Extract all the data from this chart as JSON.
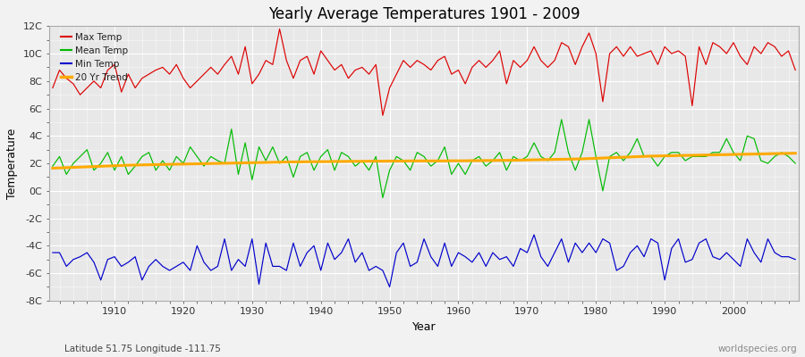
{
  "title": "Yearly Average Temperatures 1901 - 2009",
  "xlabel": "Year",
  "ylabel": "Temperature",
  "lat_lon_label": "Latitude 51.75 Longitude -111.75",
  "source_label": "worldspecies.org",
  "fig_facecolor": "#f0f0f0",
  "plot_facecolor": "#e8e8e8",
  "ylim": [
    -8,
    12
  ],
  "yticks": [
    -8,
    -6,
    -4,
    -2,
    0,
    2,
    4,
    6,
    8,
    10,
    12
  ],
  "ytick_labels": [
    "-8C",
    "-6C",
    "-4C",
    "-2C",
    "0C",
    "2C",
    "4C",
    "6C",
    "8C",
    "10C",
    "12C"
  ],
  "year_start": 1901,
  "year_end": 2009,
  "max_temp_color": "#dd0000",
  "mean_temp_color": "#00bb00",
  "min_temp_color": "#0000cc",
  "trend_color": "#ffaa00",
  "max_temp": [
    7.5,
    8.8,
    8.2,
    7.8,
    7.0,
    7.5,
    8.0,
    7.5,
    8.8,
    9.2,
    7.2,
    8.5,
    7.5,
    8.2,
    8.5,
    8.8,
    9.0,
    8.5,
    9.2,
    8.2,
    7.5,
    8.0,
    8.5,
    9.0,
    8.5,
    9.2,
    9.8,
    8.5,
    10.5,
    7.8,
    8.5,
    9.5,
    9.2,
    11.8,
    9.5,
    8.2,
    9.5,
    9.8,
    8.5,
    10.2,
    9.5,
    8.8,
    9.2,
    8.2,
    8.8,
    9.0,
    8.5,
    9.2,
    5.5,
    7.5,
    8.5,
    9.5,
    9.0,
    9.5,
    9.2,
    8.8,
    9.5,
    9.8,
    8.5,
    8.8,
    7.8,
    9.0,
    9.5,
    9.0,
    9.5,
    10.2,
    7.8,
    9.5,
    9.0,
    9.5,
    10.5,
    9.5,
    9.0,
    9.5,
    10.8,
    10.5,
    9.2,
    10.5,
    11.5,
    10.0,
    6.5,
    10.0,
    10.5,
    9.8,
    10.5,
    9.8,
    10.0,
    10.2,
    9.2,
    10.5,
    10.0,
    10.2,
    9.8,
    6.2,
    10.5,
    9.2,
    10.8,
    10.5,
    10.0,
    10.8,
    9.8,
    9.2,
    10.5,
    10.0,
    10.8,
    10.5,
    9.8,
    10.2,
    8.8
  ],
  "mean_temp": [
    1.8,
    2.5,
    1.2,
    2.0,
    2.5,
    3.0,
    1.5,
    2.0,
    2.8,
    1.5,
    2.5,
    1.2,
    1.8,
    2.5,
    2.8,
    1.5,
    2.2,
    1.5,
    2.5,
    2.0,
    3.2,
    2.5,
    1.8,
    2.5,
    2.2,
    2.0,
    4.5,
    1.2,
    3.5,
    0.8,
    3.2,
    2.2,
    3.2,
    2.0,
    2.5,
    1.0,
    2.5,
    2.8,
    1.5,
    2.5,
    3.0,
    1.5,
    2.8,
    2.5,
    1.8,
    2.2,
    1.5,
    2.5,
    -0.5,
    1.5,
    2.5,
    2.2,
    1.5,
    2.8,
    2.5,
    1.8,
    2.2,
    3.2,
    1.2,
    2.0,
    1.2,
    2.2,
    2.5,
    1.8,
    2.2,
    2.8,
    1.5,
    2.5,
    2.2,
    2.5,
    3.5,
    2.5,
    2.2,
    2.8,
    5.2,
    2.8,
    1.5,
    2.8,
    5.2,
    2.5,
    0.0,
    2.5,
    2.8,
    2.2,
    2.8,
    3.8,
    2.5,
    2.5,
    1.8,
    2.5,
    2.8,
    2.8,
    2.2,
    2.5,
    2.5,
    2.5,
    2.8,
    2.8,
    3.8,
    2.8,
    2.2,
    4.0,
    3.8,
    2.2,
    2.0,
    2.5,
    2.8,
    2.5,
    2.0
  ],
  "min_temp": [
    -4.5,
    -4.5,
    -5.5,
    -5.0,
    -4.8,
    -4.5,
    -5.2,
    -6.5,
    -5.0,
    -4.8,
    -5.5,
    -5.2,
    -4.8,
    -6.5,
    -5.5,
    -5.0,
    -5.5,
    -5.8,
    -5.5,
    -5.2,
    -5.8,
    -4.0,
    -5.2,
    -5.8,
    -5.5,
    -3.5,
    -5.8,
    -5.0,
    -5.5,
    -3.5,
    -6.8,
    -3.8,
    -5.5,
    -5.5,
    -5.8,
    -3.8,
    -5.5,
    -4.5,
    -4.0,
    -5.8,
    -3.8,
    -5.0,
    -4.5,
    -3.5,
    -5.2,
    -4.5,
    -5.8,
    -5.5,
    -5.8,
    -7.0,
    -4.5,
    -3.8,
    -5.5,
    -5.2,
    -3.5,
    -4.8,
    -5.5,
    -3.8,
    -5.5,
    -4.5,
    -4.8,
    -5.2,
    -4.5,
    -5.5,
    -4.5,
    -5.0,
    -4.8,
    -5.5,
    -4.2,
    -4.5,
    -3.2,
    -4.8,
    -5.5,
    -4.5,
    -3.5,
    -5.2,
    -3.8,
    -4.5,
    -3.8,
    -4.5,
    -3.5,
    -3.8,
    -5.8,
    -5.5,
    -4.5,
    -4.0,
    -4.8,
    -3.5,
    -3.8,
    -6.5,
    -4.2,
    -3.5,
    -5.2,
    -5.0,
    -3.8,
    -3.5,
    -4.8,
    -5.0,
    -4.5,
    -5.0,
    -5.5,
    -3.5,
    -4.5,
    -5.2,
    -3.5,
    -4.5,
    -4.8,
    -4.8,
    -5.0
  ],
  "trend_x": [
    1901,
    1902,
    1903,
    1904,
    1905,
    1906,
    1907,
    1908,
    1909,
    1910,
    1911,
    1912,
    1913,
    1914,
    1915,
    1916,
    1917,
    1918,
    1919,
    1920,
    1921,
    1922,
    1923,
    1924,
    1925,
    1926,
    1927,
    1928,
    1929,
    1930,
    1931,
    1932,
    1933,
    1934,
    1935,
    1936,
    1937,
    1938,
    1939,
    1940,
    1941,
    1942,
    1943,
    1944,
    1945,
    1946,
    1947,
    1948,
    1949,
    1950,
    1951,
    1952,
    1953,
    1954,
    1955,
    1956,
    1957,
    1958,
    1959,
    1960,
    1961,
    1962,
    1963,
    1964,
    1965,
    1966,
    1967,
    1968,
    1969,
    1970,
    1971,
    1972,
    1973,
    1974,
    1975,
    1976,
    1977,
    1978,
    1979,
    1980,
    1981,
    1982,
    1983,
    1984,
    1985,
    1986,
    1987,
    1988,
    1989,
    1990,
    1991,
    1992,
    1993,
    1994,
    1995,
    1996,
    1997,
    1998,
    1999,
    2000,
    2001,
    2002,
    2003,
    2004,
    2005,
    2006,
    2007,
    2008,
    2009
  ],
  "trend_y": [
    1.65,
    1.67,
    1.69,
    1.71,
    1.73,
    1.75,
    1.77,
    1.79,
    1.81,
    1.83,
    1.85,
    1.87,
    1.88,
    1.89,
    1.9,
    1.91,
    1.92,
    1.93,
    1.94,
    1.95,
    1.96,
    1.97,
    1.98,
    1.99,
    2.0,
    2.01,
    2.02,
    2.03,
    2.04,
    2.05,
    2.06,
    2.07,
    2.08,
    2.09,
    2.1,
    2.11,
    2.11,
    2.12,
    2.12,
    2.13,
    2.13,
    2.14,
    2.14,
    2.15,
    2.15,
    2.15,
    2.16,
    2.16,
    2.16,
    2.17,
    2.17,
    2.17,
    2.18,
    2.18,
    2.18,
    2.18,
    2.18,
    2.18,
    2.19,
    2.19,
    2.19,
    2.2,
    2.2,
    2.21,
    2.21,
    2.22,
    2.22,
    2.23,
    2.24,
    2.25,
    2.26,
    2.27,
    2.28,
    2.29,
    2.3,
    2.31,
    2.32,
    2.33,
    2.35,
    2.37,
    2.39,
    2.41,
    2.43,
    2.45,
    2.47,
    2.49,
    2.51,
    2.53,
    2.54,
    2.55,
    2.56,
    2.57,
    2.58,
    2.59,
    2.6,
    2.61,
    2.62,
    2.63,
    2.64,
    2.65,
    2.66,
    2.67,
    2.68,
    2.69,
    2.7,
    2.71,
    2.72,
    2.73,
    2.74
  ]
}
